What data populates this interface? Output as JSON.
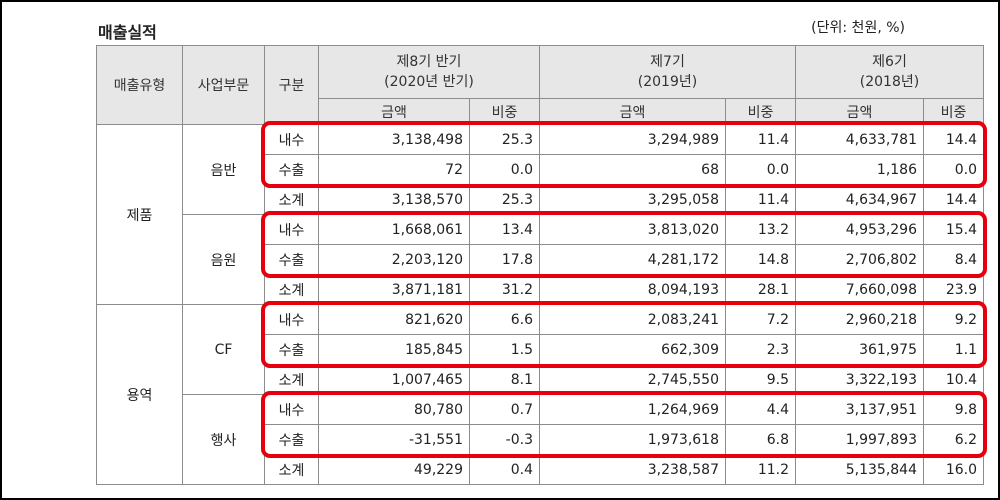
{
  "title": "매출실적",
  "unit_note": "(단위: 천원, %)",
  "header": {
    "type": "매출유형",
    "division": "사업부문",
    "category": "구분",
    "periods": [
      {
        "line1": "제8기 반기",
        "line2": "(2020년 반기)"
      },
      {
        "line1": "제7기",
        "line2": "(2019년)"
      },
      {
        "line1": "제6기",
        "line2": "(2018년)"
      }
    ],
    "amount": "금액",
    "ratio": "비중"
  },
  "groups": [
    {
      "type": "제품",
      "divisions": [
        {
          "name": "음반",
          "rows": [
            {
              "label": "내수",
              "values": [
                "3,138,498",
                "25.3",
                "3,294,989",
                "11.4",
                "4,633,781",
                "14.4"
              ]
            },
            {
              "label": "수출",
              "values": [
                "72",
                "0.0",
                "68",
                "0.0",
                "1,186",
                "0.0"
              ]
            },
            {
              "label": "소계",
              "values": [
                "3,138,570",
                "25.3",
                "3,295,058",
                "11.4",
                "4,634,967",
                "14.4"
              ]
            }
          ]
        },
        {
          "name": "음원",
          "rows": [
            {
              "label": "내수",
              "values": [
                "1,668,061",
                "13.4",
                "3,813,020",
                "13.2",
                "4,953,296",
                "15.4"
              ]
            },
            {
              "label": "수출",
              "values": [
                "2,203,120",
                "17.8",
                "4,281,172",
                "14.8",
                "2,706,802",
                "8.4"
              ]
            },
            {
              "label": "소계",
              "values": [
                "3,871,181",
                "31.2",
                "8,094,193",
                "28.1",
                "7,660,098",
                "23.9"
              ]
            }
          ]
        }
      ]
    },
    {
      "type": "용역",
      "divisions": [
        {
          "name": "CF",
          "rows": [
            {
              "label": "내수",
              "values": [
                "821,620",
                "6.6",
                "2,083,241",
                "7.2",
                "2,960,218",
                "9.2"
              ]
            },
            {
              "label": "수출",
              "values": [
                "185,845",
                "1.5",
                "662,309",
                "2.3",
                "361,975",
                "1.1"
              ]
            },
            {
              "label": "소계",
              "values": [
                "1,007,465",
                "8.1",
                "2,745,550",
                "9.5",
                "3,322,193",
                "10.4"
              ]
            }
          ]
        },
        {
          "name": "행사",
          "rows": [
            {
              "label": "내수",
              "values": [
                "80,780",
                "0.7",
                "1,264,969",
                "4.4",
                "3,137,951",
                "9.8"
              ]
            },
            {
              "label": "수출",
              "values": [
                "-31,551",
                "-0.3",
                "1,973,618",
                "6.8",
                "1,997,893",
                "6.2"
              ]
            },
            {
              "label": "소계",
              "values": [
                "49,229",
                "0.4",
                "3,238,587",
                "11.2",
                "5,135,844",
                "16.0"
              ]
            }
          ]
        }
      ]
    }
  ],
  "highlight_color": "#e6000e"
}
